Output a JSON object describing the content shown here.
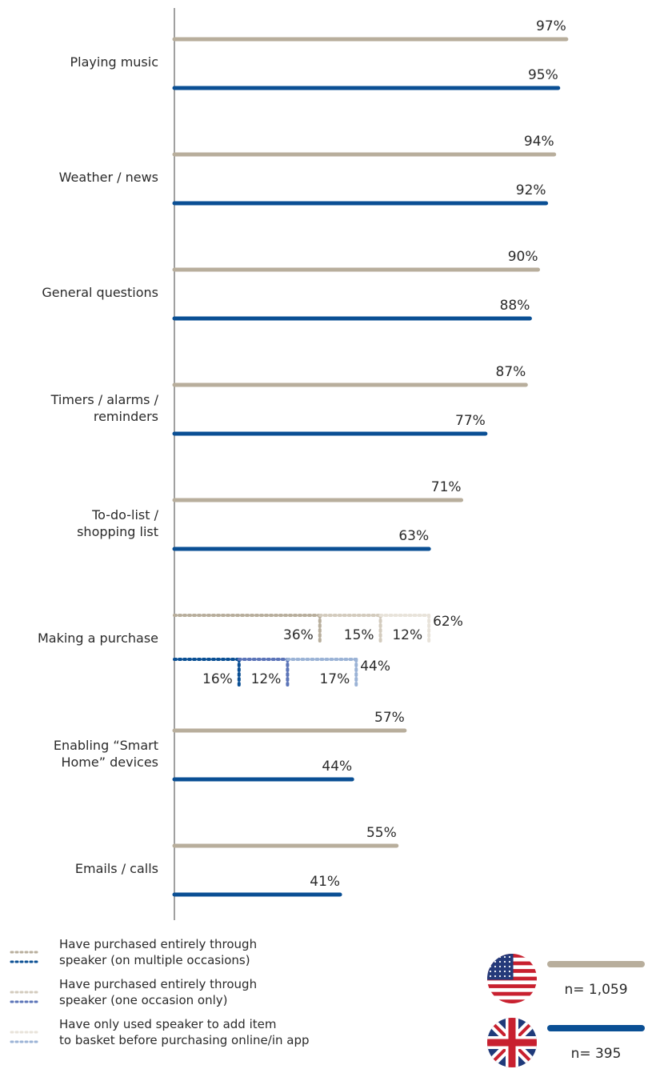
{
  "chart_data": {
    "type": "bar",
    "orientation": "horizontal",
    "title": "",
    "xlim": [
      0,
      100
    ],
    "colors": {
      "us": "#b8ae9c",
      "uk": "#0a4f94",
      "axis": "#a0a0a0"
    },
    "categories": [
      "Playing music",
      "Weather / news",
      "General questions",
      "Timers / alarms / reminders",
      "To-do-list / shopping list",
      "Making a purchase",
      "Enabling “Smart Home” devices",
      "Emails / calls"
    ],
    "series": [
      {
        "name": "n= 1,059",
        "flag": "us-flag",
        "values": [
          97,
          94,
          90,
          87,
          71,
          62,
          57,
          55
        ]
      },
      {
        "name": "n= 395",
        "flag": "uk-flag",
        "values": [
          95,
          92,
          88,
          77,
          63,
          44,
          44,
          41
        ]
      }
    ],
    "purchase_breakdown": {
      "segments": [
        "Have purchased entirely through speaker (on multiple occasions)",
        "Have purchased entirely through speaker (one occasion only)",
        "Have only used speaker to add item to basket before purchasing online/in app"
      ],
      "us": [
        36,
        15,
        12
      ],
      "uk": [
        16,
        12,
        17
      ],
      "us_colors": [
        "#b8ae9c",
        "#d3cbbd",
        "#e8e3da"
      ],
      "uk_colors": [
        "#0a4f94",
        "#5b74b8",
        "#9bb3d6"
      ]
    }
  },
  "category_lines": [
    [
      "Playing music"
    ],
    [
      "Weather / news"
    ],
    [
      "General questions"
    ],
    [
      "Timers / alarms /",
      "reminders"
    ],
    [
      "To-do-list /",
      "shopping list"
    ],
    [
      "Making a purchase"
    ],
    [
      "Enabling “Smart",
      "Home” devices"
    ],
    [
      "Emails / calls"
    ]
  ],
  "legend": [
    {
      "lines": [
        "Have purchased entirely through",
        "speaker (on multiple occasions)"
      ]
    },
    {
      "lines": [
        "Have purchased entirely through",
        "speaker (one occasion only)"
      ]
    },
    {
      "lines": [
        "Have only used speaker to add item",
        "to basket before purchasing online/in app"
      ]
    }
  ]
}
